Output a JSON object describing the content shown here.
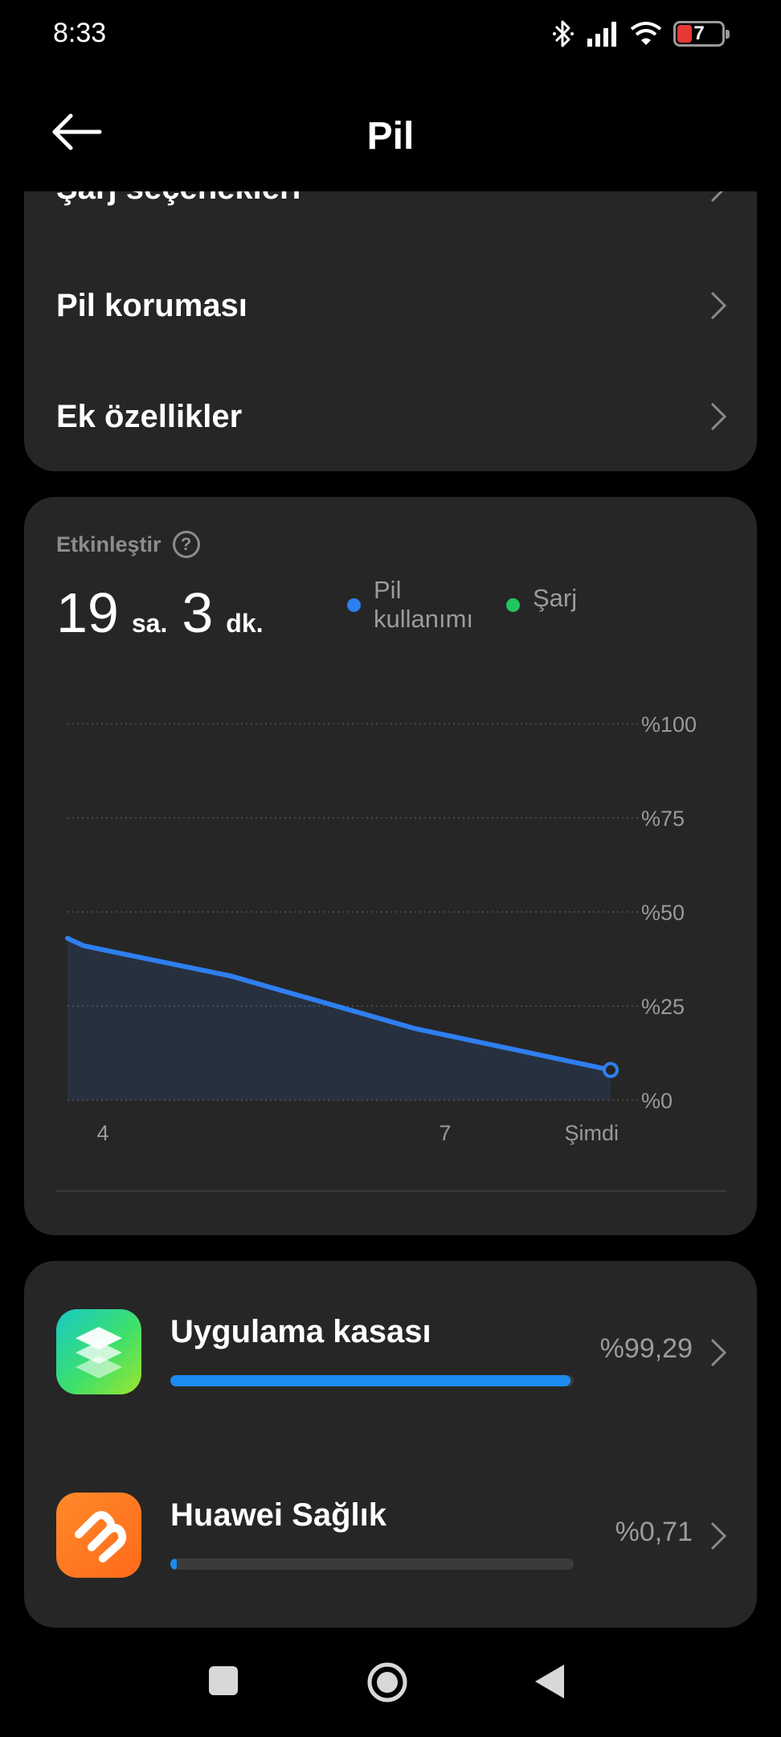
{
  "status_bar": {
    "time": "8:33",
    "battery_level": "7",
    "icons": [
      "bluetooth-icon",
      "signal-icon",
      "wifi-icon",
      "battery-icon"
    ]
  },
  "header": {
    "title": "Pil",
    "back_icon": "arrow-left-icon"
  },
  "settings_rows": [
    {
      "label": "Şarj seçenekleri"
    },
    {
      "label": "Pil koruması"
    },
    {
      "label": "Ek özellikler"
    }
  ],
  "usage": {
    "section_label": "Etkinleştir",
    "hours": "19",
    "hours_unit": "sa.",
    "minutes": "3",
    "minutes_unit": "dk.",
    "legend": [
      {
        "label": "Pil kullanımı",
        "color": "#2f7ff0"
      },
      {
        "label": "Şarj",
        "color": "#22c55e"
      }
    ]
  },
  "chart_data": {
    "type": "area",
    "ylim": [
      0,
      100
    ],
    "y_ticks": [
      "%100",
      "%75",
      "%50",
      "%25",
      "%0"
    ],
    "x_ticks": [
      "4",
      "7",
      "Şimdi"
    ],
    "grid": true,
    "legend_placement": "top",
    "series": [
      {
        "name": "Pil kullanımı",
        "color": "#2f7ff0",
        "points": [
          {
            "x": 0.0,
            "y": 43
          },
          {
            "x": 0.03,
            "y": 41
          },
          {
            "x": 0.3,
            "y": 33
          },
          {
            "x": 0.64,
            "y": 19
          },
          {
            "x": 1.0,
            "y": 8
          }
        ]
      }
    ]
  },
  "apps": [
    {
      "name": "Uygulama kasası",
      "percent": "%99,29",
      "fraction": 0.9929,
      "icon": "layers-icon"
    },
    {
      "name": "Huawei Sağlık",
      "percent": "%0,71",
      "fraction": 0.0071,
      "icon": "health-heart-icon"
    }
  ],
  "nav": {
    "buttons": [
      "recent-apps-icon",
      "home-icon",
      "back-triangle-icon"
    ]
  }
}
